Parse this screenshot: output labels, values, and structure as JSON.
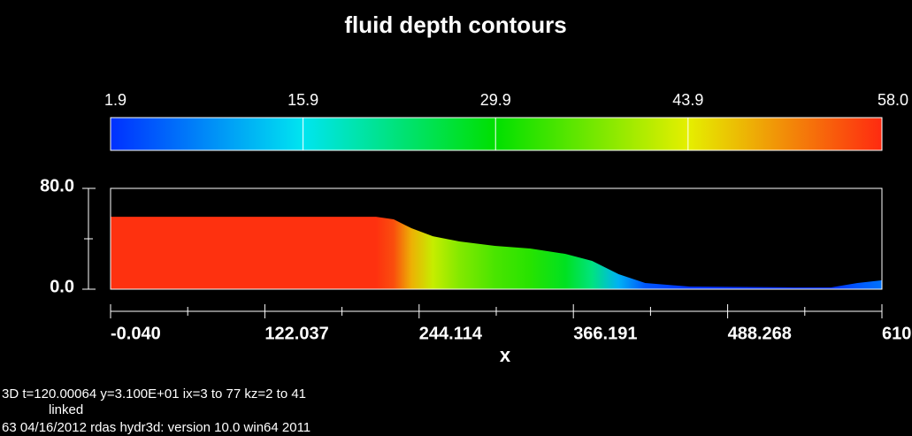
{
  "chart_data": {
    "type": "area",
    "title": "fluid depth contours",
    "x_label": "x",
    "x": [
      0,
      210,
      224,
      238,
      255,
      276,
      304,
      332,
      360,
      381,
      402,
      423,
      458,
      542,
      570,
      591,
      610
    ],
    "values": [
      57.5,
      57.5,
      55.4,
      48.4,
      42,
      37.9,
      34.4,
      32.3,
      28,
      22.5,
      11.9,
      4.9,
      2.1,
      1.4,
      1.4,
      4.9,
      7
    ],
    "xlim": [
      -0.04,
      610.345
    ],
    "xticks": [
      {
        "value": -0.04,
        "label": "-0.040"
      },
      122.037,
      244.114,
      366.191,
      488.268,
      {
        "value": 610.345,
        "label": "610."
      }
    ],
    "xminorticks": [
      61.0,
      183.075,
      305.15,
      427.23,
      549.3
    ],
    "ylim": [
      0,
      80
    ],
    "yticks": [
      {
        "value": 0,
        "label": "0.0"
      },
      {
        "value": 80,
        "label": "80.0"
      }
    ],
    "yminorticks": [
      40
    ],
    "colorbar": {
      "lim": [
        1.9,
        58
      ],
      "ticks": [
        1.9,
        15.9,
        29.9,
        43.9,
        {
          "value": 58,
          "label": "58.0"
        }
      ],
      "colors": [
        "#0030ff",
        "#00e5f0",
        "#00e000",
        "#e5ef00",
        "#ff2a10"
      ]
    },
    "footer": [
      "3D  t=120.00064  y=3.100E+01  ix=3 to 77  kz=2 to 41",
      "linked",
      "63  04/16/2012 rdas      hydr3d:  version  10.0      win64 2011"
    ]
  }
}
